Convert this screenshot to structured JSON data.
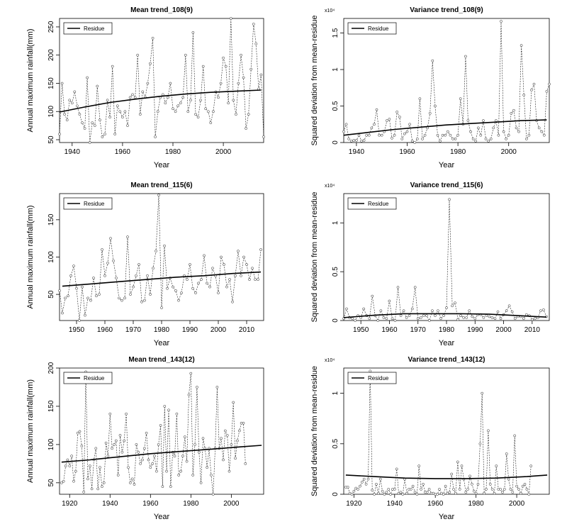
{
  "figure": {
    "legend_label": "Residue",
    "panels": [
      {
        "id": "p1",
        "title": "Mean trend_108(9)",
        "xlabel": "Year",
        "ylabel": "Annual maximum rainfall(mm)",
        "y_multiplier": ""
      },
      {
        "id": "p2",
        "title": "Variance trend_108(9)",
        "xlabel": "Year",
        "ylabel": "Squared deviation from mean-residue",
        "y_multiplier": "x10⁴"
      },
      {
        "id": "p3",
        "title": "Mean trend_115(6)",
        "xlabel": "Year",
        "ylabel": "Annual maximum rainfall(mm)",
        "y_multiplier": ""
      },
      {
        "id": "p4",
        "title": "Variance trend_115(6)",
        "xlabel": "Year",
        "ylabel": "Squared deviation from mean-residue",
        "y_multiplier": "x10⁴"
      },
      {
        "id": "p5",
        "title": "Mean trend_143(12)",
        "xlabel": "Year",
        "ylabel": "Annual maximum rainfall(mm)",
        "y_multiplier": ""
      },
      {
        "id": "p6",
        "title": "Variance trend_143(12)",
        "xlabel": "Year",
        "ylabel": "Squared deviation from mean-residue",
        "y_multiplier": "x10⁴"
      }
    ]
  },
  "chart_data": [
    {
      "type": "line",
      "title": "Mean trend_108(9)",
      "xlabel": "Year",
      "ylabel": "Annual maximum rainfall(mm)",
      "xlim": [
        1935,
        2016
      ],
      "ylim": [
        45,
        265
      ],
      "xticks": [
        1940,
        1960,
        1980,
        2000
      ],
      "yticks": [
        50,
        100,
        150,
        200,
        250
      ],
      "legend": "top-left",
      "series": [
        {
          "name": "Residue",
          "style": "solid-line",
          "x": [
            1935,
            1945,
            1955,
            1965,
            1975,
            1985,
            1995,
            2005,
            2015
          ],
          "values": [
            99,
            108,
            116,
            122,
            127,
            131,
            134,
            136,
            138
          ]
        },
        {
          "style": "dashed-points",
          "x_start": 1935,
          "values": [
            60,
            150,
            95,
            85,
            120,
            115,
            135,
            110,
            95,
            80,
            70,
            160,
            45,
            80,
            75,
            145,
            85,
            55,
            60,
            120,
            90,
            180,
            60,
            110,
            100,
            90,
            100,
            75,
            125,
            130,
            125,
            200,
            95,
            135,
            125,
            150,
            185,
            230,
            55,
            100,
            125,
            130,
            115,
            125,
            150,
            105,
            100,
            110,
            115,
            125,
            200,
            100,
            120,
            240,
            95,
            90,
            120,
            180,
            105,
            100,
            80,
            100,
            135,
            125,
            150,
            195,
            180,
            115,
            265,
            120,
            95,
            150,
            200,
            160,
            70,
            95,
            175,
            255,
            220,
            140,
            165,
            55
          ]
        }
      ]
    },
    {
      "type": "line",
      "title": "Variance trend_108(9)",
      "xlabel": "Year",
      "ylabel": "Squared deviation from mean-residue",
      "y_multiplier": "x10^4",
      "xlim": [
        1935,
        2016
      ],
      "ylim": [
        0,
        1.7
      ],
      "xticks": [
        1940,
        1960,
        1980,
        2000
      ],
      "yticks": [
        0,
        0.5,
        1,
        1.5
      ],
      "legend": "top-left",
      "series": [
        {
          "name": "Residue",
          "style": "solid-line",
          "x": [
            1935,
            1945,
            1955,
            1965,
            1975,
            1985,
            1995,
            2005,
            2015
          ],
          "values": [
            0.1,
            0.14,
            0.18,
            0.21,
            0.24,
            0.26,
            0.28,
            0.3,
            0.31
          ]
        },
        {
          "style": "dashed-points",
          "x_start": 1935,
          "values": [
            0.15,
            0.25,
            0.05,
            0.02,
            0.03,
            0.03,
            0.1,
            0.02,
            0.03,
            0.1,
            0.1,
            0.2,
            0.25,
            0.45,
            0.1,
            0.1,
            0.15,
            0.3,
            0.32,
            0.06,
            0.1,
            0.42,
            0.35,
            0.05,
            0.12,
            0.15,
            0.25,
            0.02,
            0.0,
            0.05,
            0.6,
            0.05,
            0.1,
            0.2,
            0.4,
            1.12,
            0.5,
            0.1,
            0.02,
            0.1,
            0.1,
            0.15,
            0.1,
            0.05,
            0.05,
            0.1,
            0.6,
            0.25,
            1.18,
            0.3,
            0.15,
            0.05,
            0.02,
            0.2,
            0.1,
            0.3,
            0.05,
            0.02,
            0.05,
            0.2,
            0.3,
            0.1,
            1.66,
            0.15,
            0.05,
            0.1,
            0.4,
            0.44,
            0.2,
            0.15,
            1.33,
            0.65,
            0.05,
            0.1,
            0.72,
            0.8,
            0.3,
            0.2,
            0.15,
            0.1,
            0.7,
            0.8
          ]
        }
      ]
    },
    {
      "type": "line",
      "title": "Mean trend_115(6)",
      "xlabel": "Year",
      "ylabel": "Annual maximum rainfall(mm)",
      "xlim": [
        1944,
        2016
      ],
      "ylim": [
        15,
        185
      ],
      "xticks": [
        1950,
        1960,
        1970,
        1980,
        1990,
        2000,
        2010
      ],
      "yticks": [
        50,
        100,
        150
      ],
      "legend": "top-left",
      "series": [
        {
          "name": "Residue",
          "style": "solid-line",
          "x": [
            1945,
            1955,
            1965,
            1975,
            1985,
            1995,
            2005,
            2015
          ],
          "values": [
            61,
            64,
            67,
            70,
            73,
            75,
            78,
            80
          ]
        },
        {
          "style": "dashed-points",
          "x_start": 1944,
          "values": [
            55,
            25,
            45,
            48,
            75,
            88,
            58,
            15,
            60,
            22,
            45,
            42,
            72,
            48,
            50,
            110,
            75,
            92,
            125,
            95,
            72,
            45,
            42,
            45,
            127,
            50,
            60,
            75,
            90,
            40,
            42,
            75,
            50,
            85,
            108,
            183,
            32,
            115,
            58,
            72,
            60,
            55,
            42,
            52,
            75,
            70,
            90,
            58,
            52,
            65,
            70,
            102,
            65,
            60,
            85,
            75,
            52,
            100,
            90,
            60,
            70,
            40,
            75,
            108,
            75,
            100,
            90,
            70,
            85,
            70,
            70,
            110
          ]
        }
      ]
    },
    {
      "type": "line",
      "title": "Variance trend_115(6)",
      "xlabel": "Year",
      "ylabel": "Squared deviation from mean-residue",
      "y_multiplier": "x10^4",
      "xlim": [
        1944,
        2016
      ],
      "ylim": [
        0,
        1.3
      ],
      "xticks": [
        1950,
        1960,
        1970,
        1980,
        1990,
        2000,
        2010
      ],
      "yticks": [
        0,
        0.5,
        1
      ],
      "legend": "top-left",
      "series": [
        {
          "name": "Residue",
          "style": "solid-line",
          "x": [
            1944,
            1955,
            1965,
            1975,
            1985,
            1995,
            2005,
            2015
          ],
          "values": [
            0.03,
            0.055,
            0.07,
            0.07,
            0.07,
            0.065,
            0.05,
            0.035
          ]
        },
        {
          "style": "dashed-points",
          "x_start": 1944,
          "values": [
            0.02,
            0.12,
            0.03,
            0.02,
            0.0,
            0.05,
            0.03,
            0.12,
            0.05,
            0.02,
            0.25,
            0.05,
            0.0,
            0.1,
            0.03,
            0.02,
            0.2,
            0.02,
            0.0,
            0.34,
            0.05,
            0.1,
            0.03,
            0.05,
            0.12,
            0.34,
            0.02,
            0.03,
            0.05,
            0.05,
            0.0,
            0.1,
            0.05,
            0.1,
            0.02,
            0.05,
            0.13,
            1.24,
            0.15,
            0.18,
            0.01,
            0.05,
            0.03,
            0.03,
            0.1,
            0.04,
            0.02,
            0.06,
            0.06,
            0.03,
            0.05,
            0.04,
            0.03,
            0.02,
            0.09,
            0.02,
            0.06,
            0.1,
            0.15,
            0.09,
            0.02,
            0.04,
            0.04,
            0.02,
            0.06,
            0.05,
            0.01,
            0.02,
            0.03,
            0.1,
            0.11,
            0.04
          ]
        }
      ]
    },
    {
      "type": "line",
      "title": "Mean trend_143(12)",
      "xlabel": "Year",
      "ylabel": "Annual maximum rainfall(mm)",
      "xlim": [
        1915,
        2016
      ],
      "ylim": [
        35,
        200
      ],
      "xticks": [
        1920,
        1940,
        1960,
        1980,
        2000
      ],
      "yticks": [
        50,
        100,
        150,
        200
      ],
      "legend": "top-left",
      "series": [
        {
          "name": "Residue",
          "style": "solid-line",
          "x": [
            1916,
            1930,
            1945,
            1960,
            1975,
            1990,
            2005,
            2015
          ],
          "values": [
            77,
            80,
            84,
            88,
            91,
            94,
            97,
            99
          ]
        },
        {
          "style": "dashed-points",
          "x_start": 1916,
          "values": [
            50,
            52,
            72,
            80,
            72,
            85,
            52,
            65,
            115,
            117,
            98,
            38,
            195,
            55,
            72,
            42,
            80,
            95,
            42,
            70,
            45,
            50,
            102,
            85,
            140,
            95,
            100,
            105,
            60,
            112,
            90,
            105,
            140,
            70,
            50,
            55,
            48,
            100,
            90,
            75,
            80,
            95,
            115,
            80,
            70,
            75,
            85,
            65,
            100,
            125,
            45,
            150,
            65,
            145,
            45,
            90,
            85,
            140,
            60,
            65,
            85,
            110,
            78,
            165,
            193,
            60,
            100,
            175,
            90,
            50,
            108,
            95,
            70,
            95,
            60,
            35,
            95,
            175,
            95,
            108,
            80,
            118,
            112,
            65,
            100,
            155,
            82,
            105,
            118,
            128,
            128,
            75
          ]
        }
      ]
    },
    {
      "type": "line",
      "title": "Variance trend_143(12)",
      "xlabel": "Year",
      "ylabel": "Squared deviation from mean-residue",
      "y_multiplier": "x10^4",
      "xlim": [
        1915,
        2016
      ],
      "ylim": [
        0,
        1.25
      ],
      "xticks": [
        1920,
        1940,
        1960,
        1980,
        2000
      ],
      "yticks": [
        0,
        0.5,
        1
      ],
      "legend": "top-left",
      "series": [
        {
          "name": "Residue",
          "style": "solid-line",
          "x": [
            1916,
            1930,
            1945,
            1960,
            1975,
            1990,
            2005,
            2015
          ],
          "values": [
            0.19,
            0.175,
            0.16,
            0.155,
            0.155,
            0.16,
            0.175,
            0.19
          ]
        },
        {
          "style": "dashed-points",
          "x_start": 1916,
          "values": [
            0.07,
            0.07,
            0.01,
            0.0,
            0.03,
            0.06,
            0.05,
            0.08,
            0.12,
            0.15,
            0.1,
            0.15,
            1.22,
            0.04,
            0.0,
            0.1,
            0.01,
            0.15,
            0.03,
            0.0,
            0.02,
            0.05,
            0.0,
            0.05,
            0.05,
            0.25,
            0.01,
            0.02,
            0.0,
            0.15,
            0.01,
            0.05,
            0.05,
            0.08,
            0.02,
            0.0,
            0.28,
            0.05,
            0.1,
            0.02,
            0.02,
            0.05,
            0.01,
            0.01,
            0.0,
            0.0,
            0.05,
            0.01,
            0.0,
            0.08,
            0.01,
            0.02,
            0.2,
            0.05,
            0.01,
            0.32,
            0.05,
            0.28,
            0.15,
            0.02,
            0.05,
            0.18,
            0.1,
            0.03,
            0.01,
            0.1,
            0.5,
            1.0,
            0.01,
            0.05,
            0.63,
            0.1,
            0.05,
            0.01,
            0.28,
            0.05,
            0.05,
            0.02,
            0.05,
            0.4,
            0.15,
            0.05,
            0.02,
            0.58,
            0.08,
            0.05,
            0.01,
            0.08,
            0.1,
            0.05,
            0.0,
            0.28
          ]
        }
      ]
    }
  ]
}
